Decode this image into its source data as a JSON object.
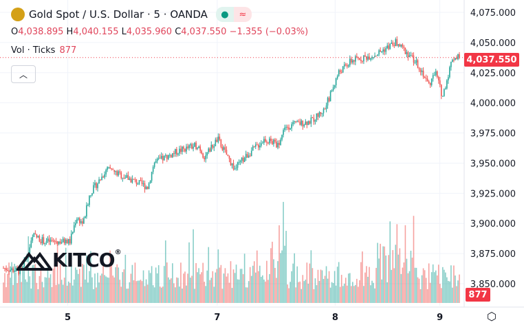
{
  "header": {
    "title": "Gold Spot / U.S. Dollar · 5 · OANDA",
    "status_dot": "●",
    "indicator": "≈"
  },
  "ohlc": {
    "o_label": "O",
    "o": "4,038.895",
    "h_label": "H",
    "h": "4,040.155",
    "l_label": "L",
    "l": "4,035.960",
    "c_label": "C",
    "c": "4,037.550",
    "change": "−1.355 (−0.03%)"
  },
  "volume": {
    "label": "Vol · Ticks",
    "value": "877"
  },
  "watermark": "KITCO",
  "last_price": "4,037.550",
  "last_volume": "877",
  "colors": {
    "up": "#26a69a",
    "down": "#ef5350",
    "accent": "#f23645"
  },
  "chart_data": {
    "type": "candlestick",
    "title": "Gold Spot / U.S. Dollar · 5 · OANDA",
    "y_ticks": [
      "4,075.000",
      "4,050.000",
      "4,025.000",
      "4,000.000",
      "3,975.000",
      "3,950.000",
      "3,925.000",
      "3,900.000",
      "3,875.000",
      "3,850.000"
    ],
    "y_tick_values": [
      4075,
      4050,
      4025,
      4000,
      3975,
      3950,
      3925,
      3900,
      3875,
      3850
    ],
    "ylim": [
      3838,
      4082
    ],
    "x_ticks": [
      "5",
      "7",
      "8",
      "9"
    ],
    "x_tick_positions": [
      0.146,
      0.468,
      0.722,
      0.958
    ],
    "price_path": [
      [
        0,
        3863
      ],
      [
        0.04,
        3860
      ],
      [
        0.066,
        3890
      ],
      [
        0.09,
        3885
      ],
      [
        0.146,
        3885
      ],
      [
        0.16,
        3905
      ],
      [
        0.175,
        3900
      ],
      [
        0.19,
        3925
      ],
      [
        0.228,
        3945
      ],
      [
        0.258,
        3940
      ],
      [
        0.317,
        3930
      ],
      [
        0.33,
        3950
      ],
      [
        0.383,
        3960
      ],
      [
        0.427,
        3965
      ],
      [
        0.441,
        3955
      ],
      [
        0.47,
        3970
      ],
      [
        0.507,
        3945
      ],
      [
        0.53,
        3955
      ],
      [
        0.573,
        3970
      ],
      [
        0.603,
        3965
      ],
      [
        0.617,
        3980
      ],
      [
        0.676,
        3985
      ],
      [
        0.705,
        3995
      ],
      [
        0.735,
        4025
      ],
      [
        0.764,
        4035
      ],
      [
        0.816,
        4040
      ],
      [
        0.86,
        4050
      ],
      [
        0.89,
        4040
      ],
      [
        0.912,
        4030
      ],
      [
        0.933,
        4015
      ],
      [
        0.948,
        4025
      ],
      [
        0.963,
        4005
      ],
      [
        0.985,
        4037.55
      ]
    ],
    "last_close": 4037.55,
    "last_volume": 877
  }
}
